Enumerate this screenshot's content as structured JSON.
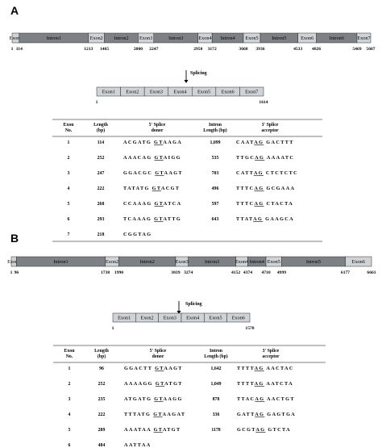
{
  "panel_a": {
    "label": "A",
    "genomic": {
      "segments": [
        {
          "label": "Exon1",
          "kind": "exon",
          "start": 1,
          "end": 114
        },
        {
          "label": "Intron1",
          "kind": "intron",
          "start": 114,
          "end": 1213
        },
        {
          "label": "Exon2",
          "kind": "exon",
          "start": 1213,
          "end": 1465
        },
        {
          "label": "Intron2",
          "kind": "intron",
          "start": 1465,
          "end": 2000
        },
        {
          "label": "Exon3",
          "kind": "exon",
          "start": 2000,
          "end": 2247
        },
        {
          "label": "Intron3",
          "kind": "intron",
          "start": 2247,
          "end": 2950
        },
        {
          "label": "Exon4",
          "kind": "exon",
          "start": 2950,
          "end": 3172
        },
        {
          "label": "Intron4",
          "kind": "intron",
          "start": 3172,
          "end": 3668
        },
        {
          "label": "Exon5",
          "kind": "exon",
          "start": 3668,
          "end": 3936
        },
        {
          "label": "Intron5",
          "kind": "intron",
          "start": 3936,
          "end": 4533
        },
        {
          "label": "Exon6",
          "kind": "exon",
          "start": 4533,
          "end": 4826
        },
        {
          "label": "Intron6",
          "kind": "intron",
          "start": 4826,
          "end": 5469
        },
        {
          "label": "Exon7",
          "kind": "exon",
          "start": 5469,
          "end": 5687
        }
      ],
      "coords": [
        "1",
        "114",
        "1213",
        "1465",
        "2000",
        "2247",
        "2950",
        "3172",
        "3668",
        "3936",
        "4533",
        "4826",
        "5469",
        "5687"
      ]
    },
    "splicing_label": "Splicing",
    "mrna": {
      "exons": [
        "Exon1",
        "Exon2",
        "Exon3",
        "Exon4",
        "Exon5",
        "Exon6",
        "Exon7"
      ],
      "start": "1",
      "end": "1614"
    },
    "table": {
      "headers": {
        "exon": [
          "Exon",
          "No."
        ],
        "length": [
          "Length",
          "(bp)"
        ],
        "donor": [
          "5' Splice",
          "donor"
        ],
        "intron": [
          "Intron",
          "Length (bp)"
        ],
        "acceptor": [
          "3' Splice",
          "acceptor"
        ]
      },
      "rows": [
        {
          "no": "1",
          "len": "114",
          "d_pre": "ACGATG",
          "d_gt": "GT",
          "d_post": "AAGA",
          "intron": "1,099",
          "a_pre": "CAAT",
          "a_ag": "AG",
          "a_post": "GACTTT"
        },
        {
          "no": "2",
          "len": "252",
          "d_pre": "AAACAG",
          "d_gt": "GT",
          "d_post": "AIGG",
          "intron": "535",
          "a_pre": "TTGC",
          "a_ag": "AG",
          "a_post": "AAAATC"
        },
        {
          "no": "3",
          "len": "247",
          "d_pre": "GGACGC",
          "d_gt": "GT",
          "d_post": "AAGT",
          "intron": "703",
          "a_pre": "CATT",
          "a_ag": "AG",
          "a_post": "CTCTCTC"
        },
        {
          "no": "4",
          "len": "222",
          "d_pre": "TATATG",
          "d_gt": "GT",
          "d_post": "ACGT",
          "intron": "496",
          "a_pre": "TTTC",
          "a_ag": "AG",
          "a_post": "GCGAAA"
        },
        {
          "no": "5",
          "len": "268",
          "d_pre": "CCAAAG",
          "d_gt": "GT",
          "d_post": "ATCA",
          "intron": "597",
          "a_pre": "TTTC",
          "a_ag": "AG",
          "a_post": "CTACTA"
        },
        {
          "no": "6",
          "len": "293",
          "d_pre": "TCAAAG",
          "d_gt": "GT",
          "d_post": "ATTG",
          "intron": "643",
          "a_pre": "TTAT",
          "a_ag": "AG",
          "a_post": "GAAGCA"
        },
        {
          "no": "7",
          "len": "218",
          "d_pre": "CGGTAG",
          "d_gt": "",
          "d_post": "",
          "intron": "",
          "a_pre": "",
          "a_ag": "",
          "a_post": ""
        }
      ]
    }
  },
  "panel_b": {
    "label": "B",
    "genomic": {
      "segments": [
        {
          "label": "Exon1",
          "kind": "exon",
          "start": 1,
          "end": 96
        },
        {
          "label": "Intron1",
          "kind": "intron",
          "start": 96,
          "end": 1738
        },
        {
          "label": "Exon2",
          "kind": "exon",
          "start": 1738,
          "end": 1990
        },
        {
          "label": "Intron2",
          "kind": "intron",
          "start": 1990,
          "end": 3039
        },
        {
          "label": "Exon3",
          "kind": "exon",
          "start": 3039,
          "end": 3274
        },
        {
          "label": "Intron3",
          "kind": "intron",
          "start": 3274,
          "end": 4152
        },
        {
          "label": "Exon4",
          "kind": "exon",
          "start": 4152,
          "end": 4374
        },
        {
          "label": "Intron4",
          "kind": "intron",
          "start": 4374,
          "end": 4710
        },
        {
          "label": "Exon5",
          "kind": "exon",
          "start": 4710,
          "end": 4999
        },
        {
          "label": "Intron5",
          "kind": "intron",
          "start": 4999,
          "end": 6177
        },
        {
          "label": "Exon6",
          "kind": "exon",
          "start": 6177,
          "end": 6661
        }
      ],
      "coords": [
        "1",
        "96",
        "1738",
        "1990",
        "3039",
        "3274",
        "4152",
        "4374",
        "4710",
        "4999",
        "6177",
        "6661"
      ]
    },
    "splicing_label": "Splicing",
    "mrna": {
      "exons": [
        "Exon1",
        "Exon2",
        "Exon3",
        "Exon4",
        "Exon5",
        "Exon6"
      ],
      "start": "1",
      "end": "1578"
    },
    "table": {
      "headers": {
        "exon": [
          "Exon",
          "No."
        ],
        "length": [
          "Length",
          "(bp)"
        ],
        "donor": [
          "5' Splice",
          "donor"
        ],
        "intron": [
          "Intron",
          "Length (bp)"
        ],
        "acceptor": [
          "3' Splice",
          "acceptor"
        ]
      },
      "rows": [
        {
          "no": "1",
          "len": "96",
          "d_pre": "GGACTT",
          "d_gt": "GT",
          "d_post": "AAGT",
          "intron": "1,642",
          "a_pre": "TTTT",
          "a_ag": "AG",
          "a_post": "AACTAC"
        },
        {
          "no": "2",
          "len": "252",
          "d_pre": "AAAAGG",
          "d_gt": "GT",
          "d_post": "ATGT",
          "intron": "1,049",
          "a_pre": "TTTT",
          "a_ag": "AG",
          "a_post": "AATCTA"
        },
        {
          "no": "3",
          "len": "235",
          "d_pre": "ATGATG",
          "d_gt": "GT",
          "d_post": "AAGG",
          "intron": "878",
          "a_pre": "TTAC",
          "a_ag": "AG",
          "a_post": "AACTGT"
        },
        {
          "no": "4",
          "len": "222",
          "d_pre": "TTTATG",
          "d_gt": "GT",
          "d_post": "AAGAT",
          "intron": "336",
          "a_pre": "GATT",
          "a_ag": "AG",
          "a_post": "GAGTGA"
        },
        {
          "no": "5",
          "len": "289",
          "d_pre": "AAATAA",
          "d_gt": "GT",
          "d_post": "ATGT",
          "intron": "1178",
          "a_pre": "GCGT",
          "a_ag": "AG",
          "a_post": "GTCTA"
        },
        {
          "no": "6",
          "len": "484",
          "d_pre": "AATTAA",
          "d_gt": "",
          "d_post": "",
          "intron": "",
          "a_pre": "",
          "a_ag": "",
          "a_post": ""
        }
      ]
    }
  },
  "colors": {
    "exon": "#d0d3d6",
    "intron": "#7c8186",
    "outline": "#2a2a2a"
  }
}
